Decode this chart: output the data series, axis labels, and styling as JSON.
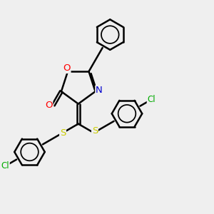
{
  "bg_color": "#efefef",
  "bond_color": "#000000",
  "line_width": 1.8,
  "atom_colors": {
    "O": "#ff0000",
    "N": "#0000cc",
    "S": "#cccc00",
    "Cl": "#00aa00",
    "C": "#000000"
  },
  "font_size": 8.5,
  "ring_r": 0.72,
  "ph_r": 0.72
}
